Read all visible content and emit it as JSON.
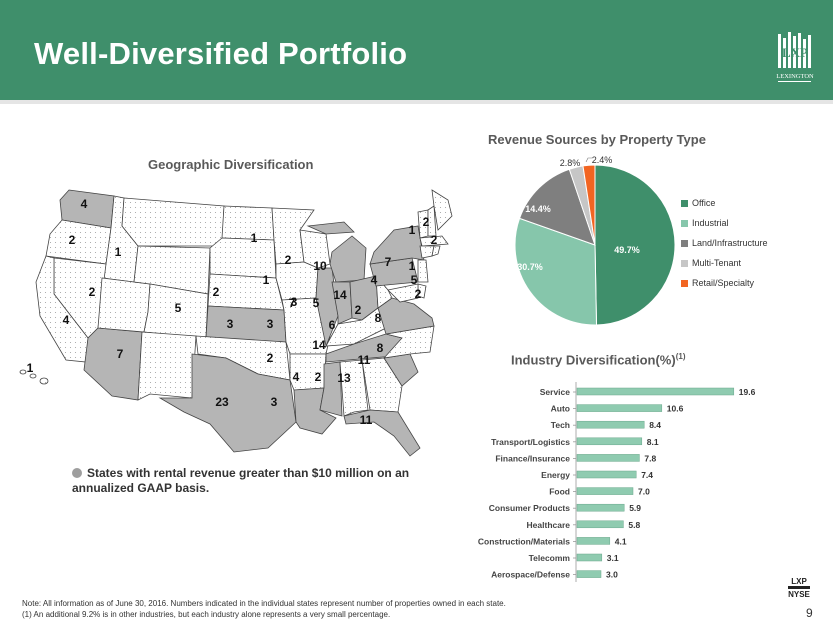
{
  "header": {
    "title": "Well-Diversified Portfolio",
    "logo_text": "LXP",
    "logo_caption": "LEXINGTON"
  },
  "geo": {
    "title": "Geographic Diversification",
    "legend": "States with rental revenue greater than $10 million on an annualized GAAP basis.",
    "highlight_color": "#b5b5b5",
    "states": [
      {
        "name": "WA",
        "count": "4",
        "highlight": true
      },
      {
        "name": "OR",
        "count": "2",
        "highlight": false
      },
      {
        "name": "ID",
        "count": "1",
        "highlight": false
      },
      {
        "name": "NV",
        "count": "2",
        "highlight": false
      },
      {
        "name": "CA",
        "count": "4",
        "highlight": false
      },
      {
        "name": "AZ",
        "count": "7",
        "highlight": true
      },
      {
        "name": "UT",
        "count": "5",
        "highlight": false
      },
      {
        "name": "CO",
        "count": "2",
        "highlight": false
      },
      {
        "name": "ND",
        "count": "1",
        "highlight": false
      },
      {
        "name": "KS",
        "count": "3",
        "highlight": true
      },
      {
        "name": "OK",
        "count": "3",
        "highlight": false
      },
      {
        "name": "TX",
        "count": "23",
        "highlight": true
      },
      {
        "name": "MN",
        "count": "2",
        "highlight": false
      },
      {
        "name": "IA",
        "count": "1",
        "highlight": false
      },
      {
        "name": "MO",
        "count": "3",
        "highlight": false
      },
      {
        "name": "AR",
        "count": "2",
        "highlight": false
      },
      {
        "name": "LA",
        "count": "3",
        "highlight": true
      },
      {
        "name": "MI",
        "count": "10",
        "highlight": true
      },
      {
        "name": "IL",
        "count": "7",
        "highlight": true
      },
      {
        "name": "IN",
        "count": "5",
        "highlight": true
      },
      {
        "name": "OH",
        "count": "14",
        "highlight": true
      },
      {
        "name": "KY",
        "count": "6",
        "highlight": false
      },
      {
        "name": "TN",
        "count": "14",
        "highlight": true
      },
      {
        "name": "MS",
        "count": "4",
        "highlight": true
      },
      {
        "name": "AL",
        "count": "2",
        "highlight": false
      },
      {
        "name": "GA",
        "count": "13",
        "highlight": false
      },
      {
        "name": "FL",
        "count": "11",
        "highlight": true
      },
      {
        "name": "SC",
        "count": "11",
        "highlight": true
      },
      {
        "name": "NC",
        "count": "8",
        "highlight": false
      },
      {
        "name": "VA",
        "count": "8",
        "highlight": true
      },
      {
        "name": "WV",
        "count": "2",
        "highlight": false
      },
      {
        "name": "PA",
        "count": "4",
        "highlight": true
      },
      {
        "name": "NY",
        "count": "7",
        "highlight": true
      },
      {
        "name": "VT",
        "count": "1",
        "highlight": false
      },
      {
        "name": "ME",
        "count": "2",
        "highlight": false
      },
      {
        "name": "MA",
        "count": "2",
        "highlight": false
      },
      {
        "name": "CT",
        "count": "1",
        "highlight": false
      },
      {
        "name": "NJ",
        "count": "5",
        "highlight": false
      },
      {
        "name": "MD",
        "count": "2",
        "highlight": false
      },
      {
        "name": "HI",
        "count": "1",
        "highlight": false
      }
    ]
  },
  "chart_data": [
    {
      "type": "pie",
      "title": "Revenue Sources by Property Type",
      "slices": [
        {
          "label": "Office",
          "value": 49.7,
          "display": "49.7%",
          "color": "#3f8f6b"
        },
        {
          "label": "Industrial",
          "value": 30.7,
          "display": "30.7%",
          "color": "#86c6ab"
        },
        {
          "label": "Land/Infrastructure",
          "value": 14.4,
          "display": "14.4%",
          "color": "#7f7f7f"
        },
        {
          "label": "Multi-Tenant",
          "value": 2.8,
          "display": "2.8%",
          "color": "#c6c6c6"
        },
        {
          "label": "Retail/Specialty",
          "value": 2.4,
          "display": "2.4%",
          "color": "#f26522"
        }
      ],
      "legend_position": "right"
    },
    {
      "type": "bar",
      "orientation": "horizontal",
      "title": "Industry Diversification(%)",
      "title_main": "Industry Diversification(%)",
      "title_super": "(1)",
      "categories": [
        "Service",
        "Auto",
        "Tech",
        "Transport/Logistics",
        "Finance/Insurance",
        "Energy",
        "Food",
        "Consumer Products",
        "Healthcare",
        "Construction/Materials",
        "Telecomm",
        "Aerospace/Defense"
      ],
      "values": [
        19.6,
        10.6,
        8.4,
        8.1,
        7.8,
        7.4,
        7.0,
        5.9,
        5.8,
        4.1,
        3.1,
        3.0
      ],
      "value_labels": [
        "19.6",
        "10.6",
        "8.4",
        "8.1",
        "7.8",
        "7.4",
        "7.0",
        "5.9",
        "5.8",
        "4.1",
        "3.1",
        "3.0"
      ],
      "bar_color": "#8fcbb0",
      "grid": false,
      "xlim": [
        0,
        20
      ]
    }
  ],
  "footer": {
    "note1": "Note: All information as of June 30, 2016. Numbers indicated in the individual states represent number of properties owned in each state.",
    "note2": "(1) An additional 9.2% is in other industries, but each industry alone represents a very small percentage.",
    "page_number": "9",
    "exchange_top": "LXP",
    "exchange_bottom": "NYSE"
  }
}
